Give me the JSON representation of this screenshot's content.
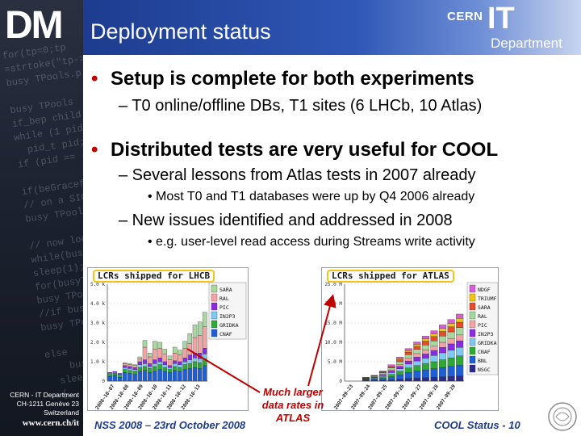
{
  "slide": {
    "title": "Deployment status",
    "logo_left": "DM",
    "logo_right": {
      "cern": "CERN",
      "it": "IT",
      "department": "Department"
    },
    "sidebar_footer": [
      "CERN - IT Department",
      "CH-1211 Genève 23",
      "Switzerland"
    ],
    "sidebar_url": "www.cern.ch/it",
    "sidebar_code": "for(tp=0;tp\n=strtoke(\"tp->second\nbusy TPools.p\n\nbusy TPools\nif_bep child\nwhile (1 pid\n  pid_t pid;\nif (pid == -\n\nif(beGraceful)\n// on a SIGINT\nbusy TPools\n\n// now loop with\nwhile(busyTP\nsleep(1); //\nfor(busyTPo\nbusy TPools.p\n//if busyTPools\nbusy TPools.p\n\nelse\n    busy\n  sleep(1)\n  {"
  },
  "bullets": [
    {
      "level": 1,
      "text": "Setup is complete for both experiments"
    },
    {
      "level": 2,
      "text": "– T0 online/offline DBs, T1 sites (6 LHCb, 10 Atlas)"
    },
    {
      "level": 1,
      "text": "Distributed tests are very useful for COOL"
    },
    {
      "level": 2,
      "text": "– Several lessons from Atlas tests in 2007 already"
    },
    {
      "level": 3,
      "text": "• Most T0 and T1 databases were up by Q4 2006 already"
    },
    {
      "level": 2,
      "text": "– New issues identified and addressed in 2008"
    },
    {
      "level": 3,
      "text": "• e.g. user-level read access during Streams write activity"
    }
  ],
  "bullet_mark": "•",
  "annotation": "Much larger data rates in ATLAS",
  "footer": {
    "left": "NSS 2008 – 23rd October 2008",
    "right": "COOL Status - 10"
  },
  "colors": {
    "accent_red": "#c00000",
    "header_blue": "#2f57b6",
    "footer_blue": "#1e3c8c"
  },
  "chart_data": [
    {
      "type": "bar",
      "stacked": true,
      "title": "LCRs shipped for LHCB",
      "y_ticks": [
        "0",
        "1.0 k",
        "2.0 k",
        "3.0 k",
        "4.0 k",
        "5.0 k"
      ],
      "ylim": [
        0,
        5000
      ],
      "x_ticks": [
        "2008-10-07",
        "2008-10-08",
        "2008-10-09",
        "2008-10-10",
        "2008-10-11",
        "2008-10-12",
        "2008-10-13"
      ],
      "categories": [
        "1",
        "2",
        "3",
        "4",
        "5",
        "6",
        "7",
        "8",
        "9",
        "10",
        "11",
        "12",
        "13",
        "14",
        "15",
        "16",
        "17",
        "18",
        "19",
        "20"
      ],
      "legend_position": "right",
      "series": [
        {
          "name": "CNAF",
          "color": "#1f5fd6",
          "values": [
            250,
            300,
            200,
            450,
            400,
            350,
            500,
            550,
            450,
            500,
            600,
            500,
            450,
            550,
            500,
            600,
            650,
            700,
            650,
            800
          ]
        },
        {
          "name": "GRIDKA",
          "color": "#2ea836",
          "values": [
            100,
            100,
            100,
            150,
            150,
            150,
            200,
            200,
            200,
            250,
            250,
            200,
            150,
            200,
            200,
            250,
            250,
            300,
            300,
            350
          ]
        },
        {
          "name": "IN2P3",
          "color": "#7fc9f0",
          "values": [
            50,
            50,
            50,
            100,
            100,
            100,
            150,
            150,
            100,
            150,
            150,
            150,
            100,
            150,
            150,
            150,
            200,
            200,
            200,
            250
          ]
        },
        {
          "name": "PIC",
          "color": "#8a2be2",
          "values": [
            50,
            50,
            50,
            100,
            100,
            100,
            150,
            200,
            150,
            200,
            200,
            150,
            100,
            150,
            150,
            200,
            250,
            250,
            300,
            300
          ]
        },
        {
          "name": "RAL",
          "color": "#f4a3a3",
          "values": [
            0,
            0,
            0,
            100,
            100,
            100,
            150,
            650,
            350,
            550,
            500,
            400,
            300,
            400,
            350,
            500,
            600,
            800,
            900,
            1100
          ]
        },
        {
          "name": "SARA",
          "color": "#a8d8a0",
          "values": [
            0,
            0,
            0,
            50,
            50,
            50,
            100,
            350,
            200,
            400,
            300,
            250,
            200,
            300,
            250,
            350,
            500,
            650,
            700,
            750
          ]
        }
      ]
    },
    {
      "type": "bar",
      "stacked": true,
      "title": "LCRs shipped for ATLAS",
      "y_ticks": [
        "0",
        "5.0 M",
        "10.0 M",
        "15.0 M",
        "20.0 M",
        "25.0 M"
      ],
      "ylim": [
        0,
        25000000
      ],
      "x_ticks": [
        "2007-09-23",
        "2007-09-24",
        "2007-09-25",
        "2007-09-26",
        "2007-09-27",
        "2007-09-28",
        "2007-09-29"
      ],
      "categories": [
        "1",
        "2",
        "3",
        "4",
        "5",
        "6",
        "7",
        "8",
        "9",
        "10",
        "11",
        "12",
        "13",
        "14"
      ],
      "legend_position": "right",
      "series": [
        {
          "name": "NSGC",
          "color": "#2c2c8c",
          "values": [
            0,
            0,
            100000,
            100000,
            200000,
            300000,
            500000,
            700000,
            800000,
            900000,
            1000000,
            1100000,
            1200000,
            1300000
          ]
        },
        {
          "name": "BNL",
          "color": "#1f5fd6",
          "values": [
            0,
            0,
            200000,
            300000,
            500000,
            800000,
            1100000,
            1500000,
            1800000,
            2000000,
            2200000,
            2400000,
            2600000,
            2800000
          ]
        },
        {
          "name": "CNAF",
          "color": "#2ea836",
          "values": [
            0,
            0,
            100000,
            200000,
            400000,
            600000,
            900000,
            1200000,
            1400000,
            1600000,
            1800000,
            2000000,
            2200000,
            2400000
          ]
        },
        {
          "name": "GRIDKA",
          "color": "#7fc9f0",
          "values": [
            0,
            0,
            100000,
            200000,
            300000,
            500000,
            700000,
            1000000,
            1200000,
            1400000,
            1600000,
            1800000,
            2000000,
            2200000
          ]
        },
        {
          "name": "IN2P3",
          "color": "#8a2be2",
          "values": [
            0,
            0,
            100000,
            100000,
            200000,
            400000,
            600000,
            800000,
            1000000,
            1100000,
            1300000,
            1400000,
            1600000,
            1700000
          ]
        },
        {
          "name": "PIC",
          "color": "#f4a3a3",
          "values": [
            0,
            0,
            100000,
            100000,
            200000,
            300000,
            500000,
            700000,
            900000,
            1000000,
            1100000,
            1300000,
            1400000,
            1500000
          ]
        },
        {
          "name": "RAL",
          "color": "#a8d8a0",
          "values": [
            0,
            0,
            100000,
            200000,
            300000,
            500000,
            700000,
            900000,
            1100000,
            1300000,
            1400000,
            1600000,
            1700000,
            1900000
          ]
        },
        {
          "name": "SARA",
          "color": "#e84a2a",
          "values": [
            0,
            0,
            100000,
            100000,
            200000,
            300000,
            500000,
            700000,
            800000,
            1000000,
            1100000,
            1200000,
            1300000,
            1400000
          ]
        },
        {
          "name": "TRIUMF",
          "color": "#f0c419",
          "values": [
            0,
            0,
            0,
            100000,
            100000,
            200000,
            300000,
            400000,
            500000,
            600000,
            700000,
            800000,
            900000,
            1000000
          ]
        },
        {
          "name": "NDGF",
          "color": "#d65fd6",
          "values": [
            0,
            0,
            100000,
            100000,
            200000,
            300000,
            400000,
            500000,
            600000,
            700000,
            800000,
            900000,
            1000000,
            1100000
          ]
        }
      ]
    }
  ]
}
